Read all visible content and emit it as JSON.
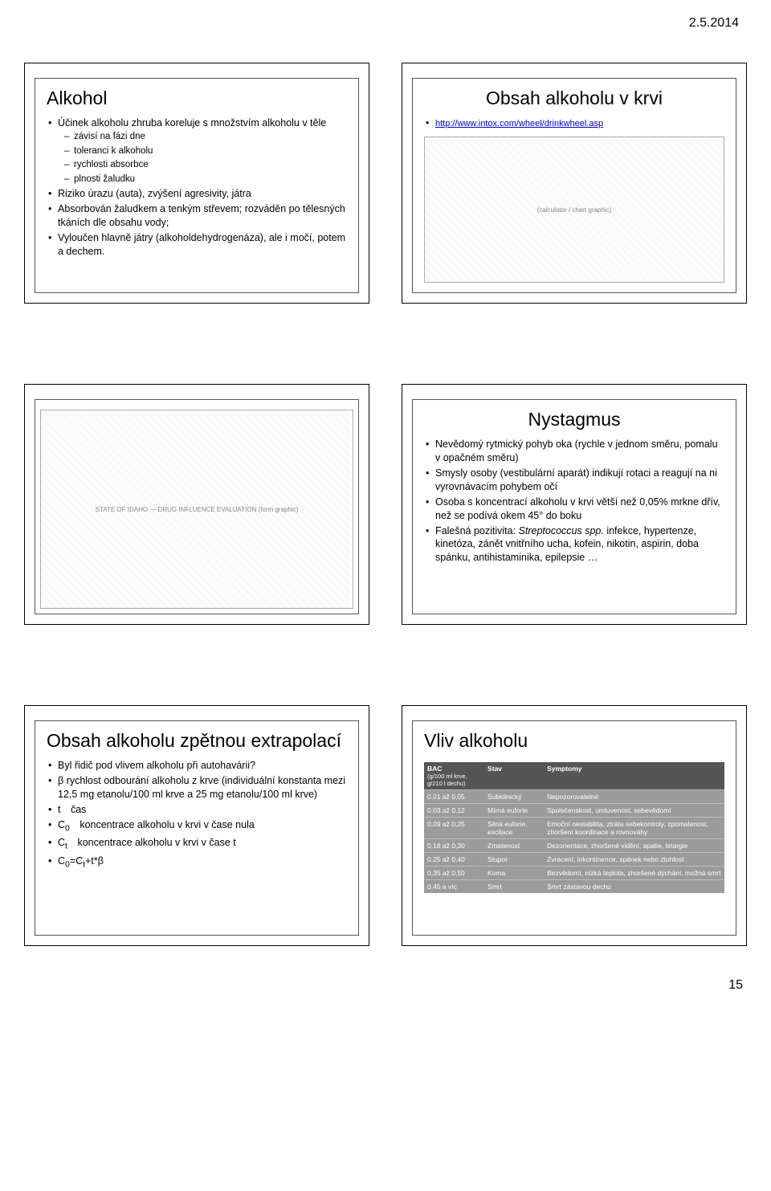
{
  "header": {
    "date": "2.5.2014"
  },
  "page_number": "15",
  "slides": {
    "s1": {
      "title": "Alkohol",
      "b1": "Účinek alkoholu zhruba koreluje s množstvím alkoholu v těle",
      "b1a": "závisí na fázi dne",
      "b1b": "toleranci k alkoholu",
      "b1c": "rychlosti absorbce",
      "b1d": "plnosti žaludku",
      "b2": "Riziko úrazu (auta), zvýšení agresivity, játra",
      "b3": "Absorbován žaludkem a tenkým střevem; rozváděn po tělesných tkáních dle obsahu vody;",
      "b4": "Vyloučen hlavně játry (alkoholdehydrogenáza), ale i močí, potem a dechem."
    },
    "s2": {
      "title": "Obsah alkoholu v krvi",
      "link": "http://www.intox.com/wheel/drinkwheel.asp",
      "placeholder": "(calculator / chart graphic)"
    },
    "s3": {
      "placeholder": "STATE OF IDAHO — DRUG INFLUENCE EVALUATION (form graphic)"
    },
    "s4": {
      "title": "Nystagmus",
      "b1": "Nevědomý rytmický pohyb oka (rychle v jednom směru, pomalu v opačném směru)",
      "b2": "Smysly osoby (vestibulární aparát) indikují rotaci a reagují na ni vyrovnávacím pohybem očí",
      "b3": "Osoba s koncentrací alkoholu v krvi větší než 0,05% mrkne dřív, než se podívá okem 45° do boku",
      "b4_pre": "Falešná pozitivita: ",
      "b4_em": "Streptococcus spp.",
      "b4_post": " infekce, hypertenze, kinetóza, zánět vnitřního ucha, kofein, nikotin, aspirin, doba spánku, antihistaminika, epilepsie …"
    },
    "s5": {
      "title": "Obsah alkoholu zpětnou extrapolací",
      "b1": "Byl řidič pod vlivem alkoholu při autohavárii?",
      "b2": "β rychlost odbourání alkoholu z krve (individuální konstanta mezi 12,5 mg etanolu/100 ml krve a 25 mg etanolu/100 ml krve)",
      "b3": "t čas",
      "b4_pre": "C",
      "b4_sub": "0",
      "b4_post": " koncentrace alkoholu v krvi v čase nula",
      "b5_pre": "C",
      "b5_sub": "t",
      "b5_post": " koncentrace alkoholu v krvi v čase t",
      "b6_c0": "C",
      "b6_0": "0",
      "b6_eq": "=C",
      "b6_t": "t",
      "b6_rest": "+t*β"
    },
    "s6": {
      "title": "Vliv alkoholu",
      "table": {
        "head_bac": "BAC",
        "head_bac_sub": "(g/100 ml krve, g/210 l dechu)",
        "head_state": "Stav",
        "head_symp": "Symptomy",
        "rows": [
          {
            "bac": "0,01 až 0,05",
            "state": "Subklinický",
            "symp": "Nepozorovatelné"
          },
          {
            "bac": "0,03 až 0,12",
            "state": "Mírná euforie",
            "symp": "Společenskost, umluvenost, sebevědomí"
          },
          {
            "bac": "0,09 až 0,25",
            "state": "Silná euforie, excitace",
            "symp": "Emoční nestabilita, ztráta sebekontroly, zpomalenost, zhoršení koordinace a rovnováhy"
          },
          {
            "bac": "0,18 až 0,30",
            "state": "Zmatenost",
            "symp": "Dezorientace, zhoršené vidění, apatie, letargie"
          },
          {
            "bac": "0,25 až 0,40",
            "state": "Stupor",
            "symp": "Zvracení, inkontinence, spánek nebo ztuhlost"
          },
          {
            "bac": "0,35 až 0,50",
            "state": "Koma",
            "symp": "Bezvědomí, nízká teplota, zhoršené dýchání, možná smrt"
          },
          {
            "bac": "0,45 a víc",
            "state": "Smrt",
            "symp": "Smrt zástavou dechu"
          }
        ]
      }
    }
  }
}
